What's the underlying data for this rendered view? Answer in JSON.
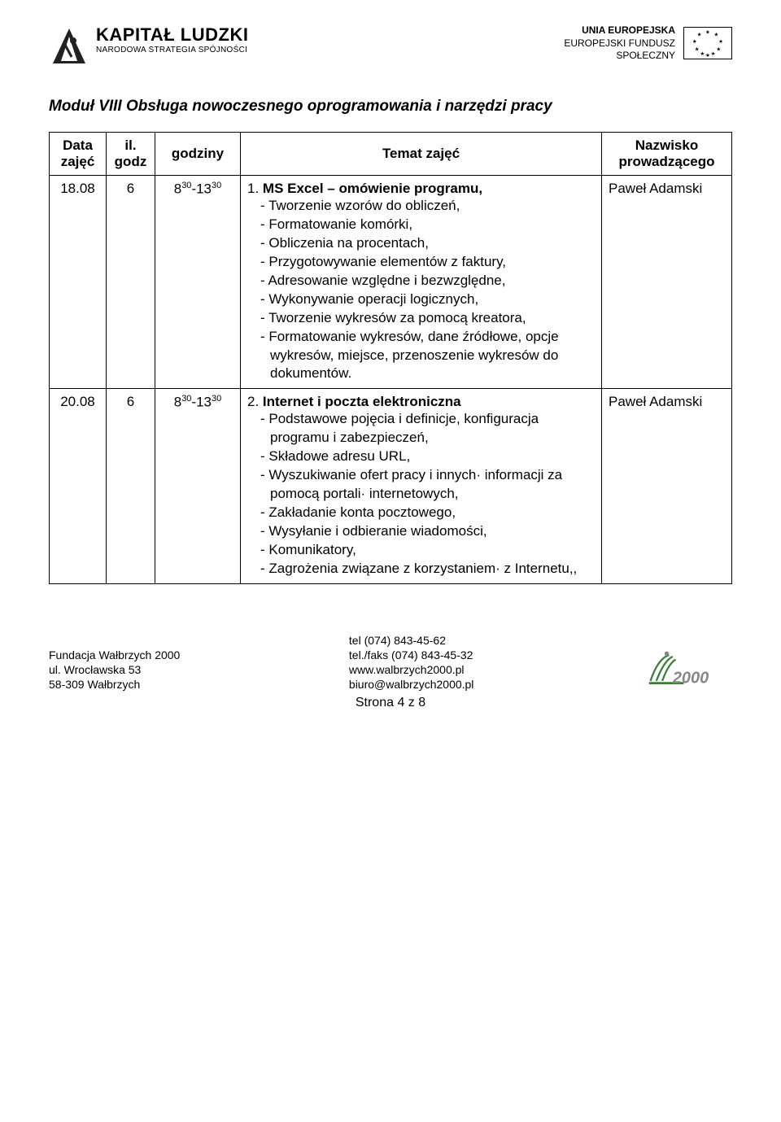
{
  "header": {
    "kl_main": "KAPITAŁ LUDZKI",
    "kl_sub": "NARODOWA STRATEGIA SPÓJNOŚCI",
    "eu_line1": "UNIA EUROPEJSKA",
    "eu_line2": "EUROPEJSKI FUNDUSZ",
    "eu_line3": "SPOŁECZNY"
  },
  "module_title": "Moduł VIII Obsługa nowoczesnego oprogramowania i narzędzi pracy",
  "table": {
    "headers": {
      "data": "Data zajęć",
      "il": "il. godz",
      "godziny": "godziny",
      "temat": "Temat zajęć",
      "nazwisko": "Nazwisko prowadzącego"
    },
    "rows": [
      {
        "data": "18.08",
        "il": "6",
        "godz_start_base": "8",
        "godz_start_sup": "30",
        "godz_end_base": "-13",
        "godz_end_sup": "30",
        "topic_num": "1. ",
        "topic_title": "MS Excel – omówienie programu,",
        "items": [
          "Tworzenie wzorów do obliczeń,",
          "Formatowanie komórki,",
          "Obliczenia na procentach,",
          "Przygotowywanie elementów z faktury,",
          "Adresowanie względne i bezwzględne,",
          "Wykonywanie operacji logicznych,",
          "Tworzenie wykresów za pomocą kreatora,",
          "Formatowanie wykresów, dane źródłowe, opcje wykresów, miejsce, przenoszenie wykresów do dokumentów."
        ],
        "instructor": "Paweł Adamski"
      },
      {
        "data": "20.08",
        "il": "6",
        "godz_start_base": "8",
        "godz_start_sup": "30",
        "godz_end_base": "-13",
        "godz_end_sup": "30",
        "topic_num": "2. ",
        "topic_title": "Internet i poczta elektroniczna",
        "items": [
          "Podstawowe pojęcia i definicje, konfiguracja programu i zabezpieczeń,",
          "Składowe adresu URL,",
          "Wyszukiwanie ofert pracy i innych· informacji za pomocą portali· internetowych,",
          "Zakładanie konta pocztowego,",
          " Wysyłanie i odbieranie wiadomości,",
          "Komunikatory,",
          "Zagrożenia związane z korzystaniem· z Internetu,,"
        ],
        "instructor": "Paweł Adamski"
      }
    ]
  },
  "footer": {
    "org": "Fundacja Wałbrzych 2000",
    "addr1": "ul. Wrocławska 53",
    "addr2": "58-309 Wałbrzych",
    "tel": "tel (074) 843-45-62",
    "faks": "tel./faks (074) 843-45-32",
    "web": "www.walbrzych2000.pl",
    "email": "biuro@walbrzych2000.pl",
    "page_num": "Strona 4 z 8"
  },
  "colors": {
    "text": "#000000",
    "bg": "#ffffff",
    "border": "#000000",
    "logo_green": "#3a7d3a",
    "logo_gray": "#888888"
  }
}
